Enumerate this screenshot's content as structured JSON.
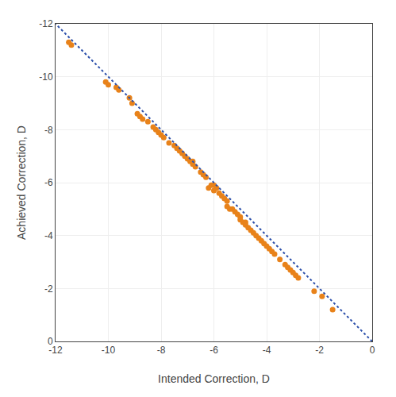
{
  "chart_data": {
    "type": "scatter",
    "xlabel": "Intended Correction, D",
    "ylabel": "Achieved Correction, D",
    "xlim": [
      -12,
      0
    ],
    "ylim": [
      0,
      -12
    ],
    "xticks": [
      -12,
      -10,
      -8,
      -6,
      -4,
      -2,
      0
    ],
    "yticks": [
      0,
      -2,
      -4,
      -6,
      -8,
      -10,
      -12
    ],
    "grid": true,
    "series": [
      {
        "type": "scatter",
        "color": "#E8821A",
        "marker": "circle",
        "x": [
          -11.5,
          -11.4,
          -10.1,
          -10.0,
          -9.7,
          -9.6,
          -9.2,
          -9.1,
          -8.9,
          -8.8,
          -8.7,
          -8.5,
          -8.3,
          -8.2,
          -8.1,
          -8.0,
          -7.9,
          -7.7,
          -7.5,
          -7.4,
          -7.3,
          -7.2,
          -7.1,
          -7.0,
          -6.9,
          -6.8,
          -6.8,
          -6.7,
          -6.5,
          -6.4,
          -6.3,
          -6.2,
          -6.1,
          -6.0,
          -6.0,
          -5.9,
          -5.8,
          -5.7,
          -5.6,
          -5.5,
          -5.5,
          -5.4,
          -5.3,
          -5.2,
          -5.1,
          -5.0,
          -5.0,
          -4.9,
          -4.8,
          -4.8,
          -4.7,
          -4.6,
          -4.5,
          -4.4,
          -4.3,
          -4.2,
          -4.1,
          -4.0,
          -3.9,
          -3.8,
          -3.7,
          -3.5,
          -3.3,
          -3.2,
          -3.1,
          -3.0,
          -2.9,
          -2.8,
          -2.2,
          -1.9,
          -1.5
        ],
        "values": [
          -11.3,
          -11.2,
          -9.8,
          -9.7,
          -9.6,
          -9.5,
          -9.2,
          -9.0,
          -8.6,
          -8.5,
          -8.4,
          -8.3,
          -8.1,
          -8.0,
          -7.9,
          -7.8,
          -7.7,
          -7.5,
          -7.4,
          -7.3,
          -7.2,
          -7.1,
          -7.0,
          -6.9,
          -6.8,
          -6.7,
          -6.8,
          -6.6,
          -6.4,
          -6.3,
          -6.2,
          -5.8,
          -5.9,
          -5.9,
          -5.7,
          -5.8,
          -5.6,
          -5.5,
          -5.4,
          -5.3,
          -5.1,
          -5.0,
          -5.0,
          -4.9,
          -4.8,
          -4.7,
          -4.6,
          -4.5,
          -4.4,
          -4.5,
          -4.3,
          -4.2,
          -4.1,
          -4.0,
          -3.9,
          -3.8,
          -3.7,
          -3.6,
          -3.5,
          -3.4,
          -3.3,
          -3.1,
          -2.9,
          -2.8,
          -2.7,
          -2.6,
          -2.5,
          -2.4,
          -1.9,
          -1.7,
          -1.2
        ]
      },
      {
        "type": "line",
        "color": "#2B4FAA",
        "line_style": "dotted",
        "x": [
          0,
          -12
        ],
        "values": [
          0,
          -12
        ]
      }
    ]
  }
}
